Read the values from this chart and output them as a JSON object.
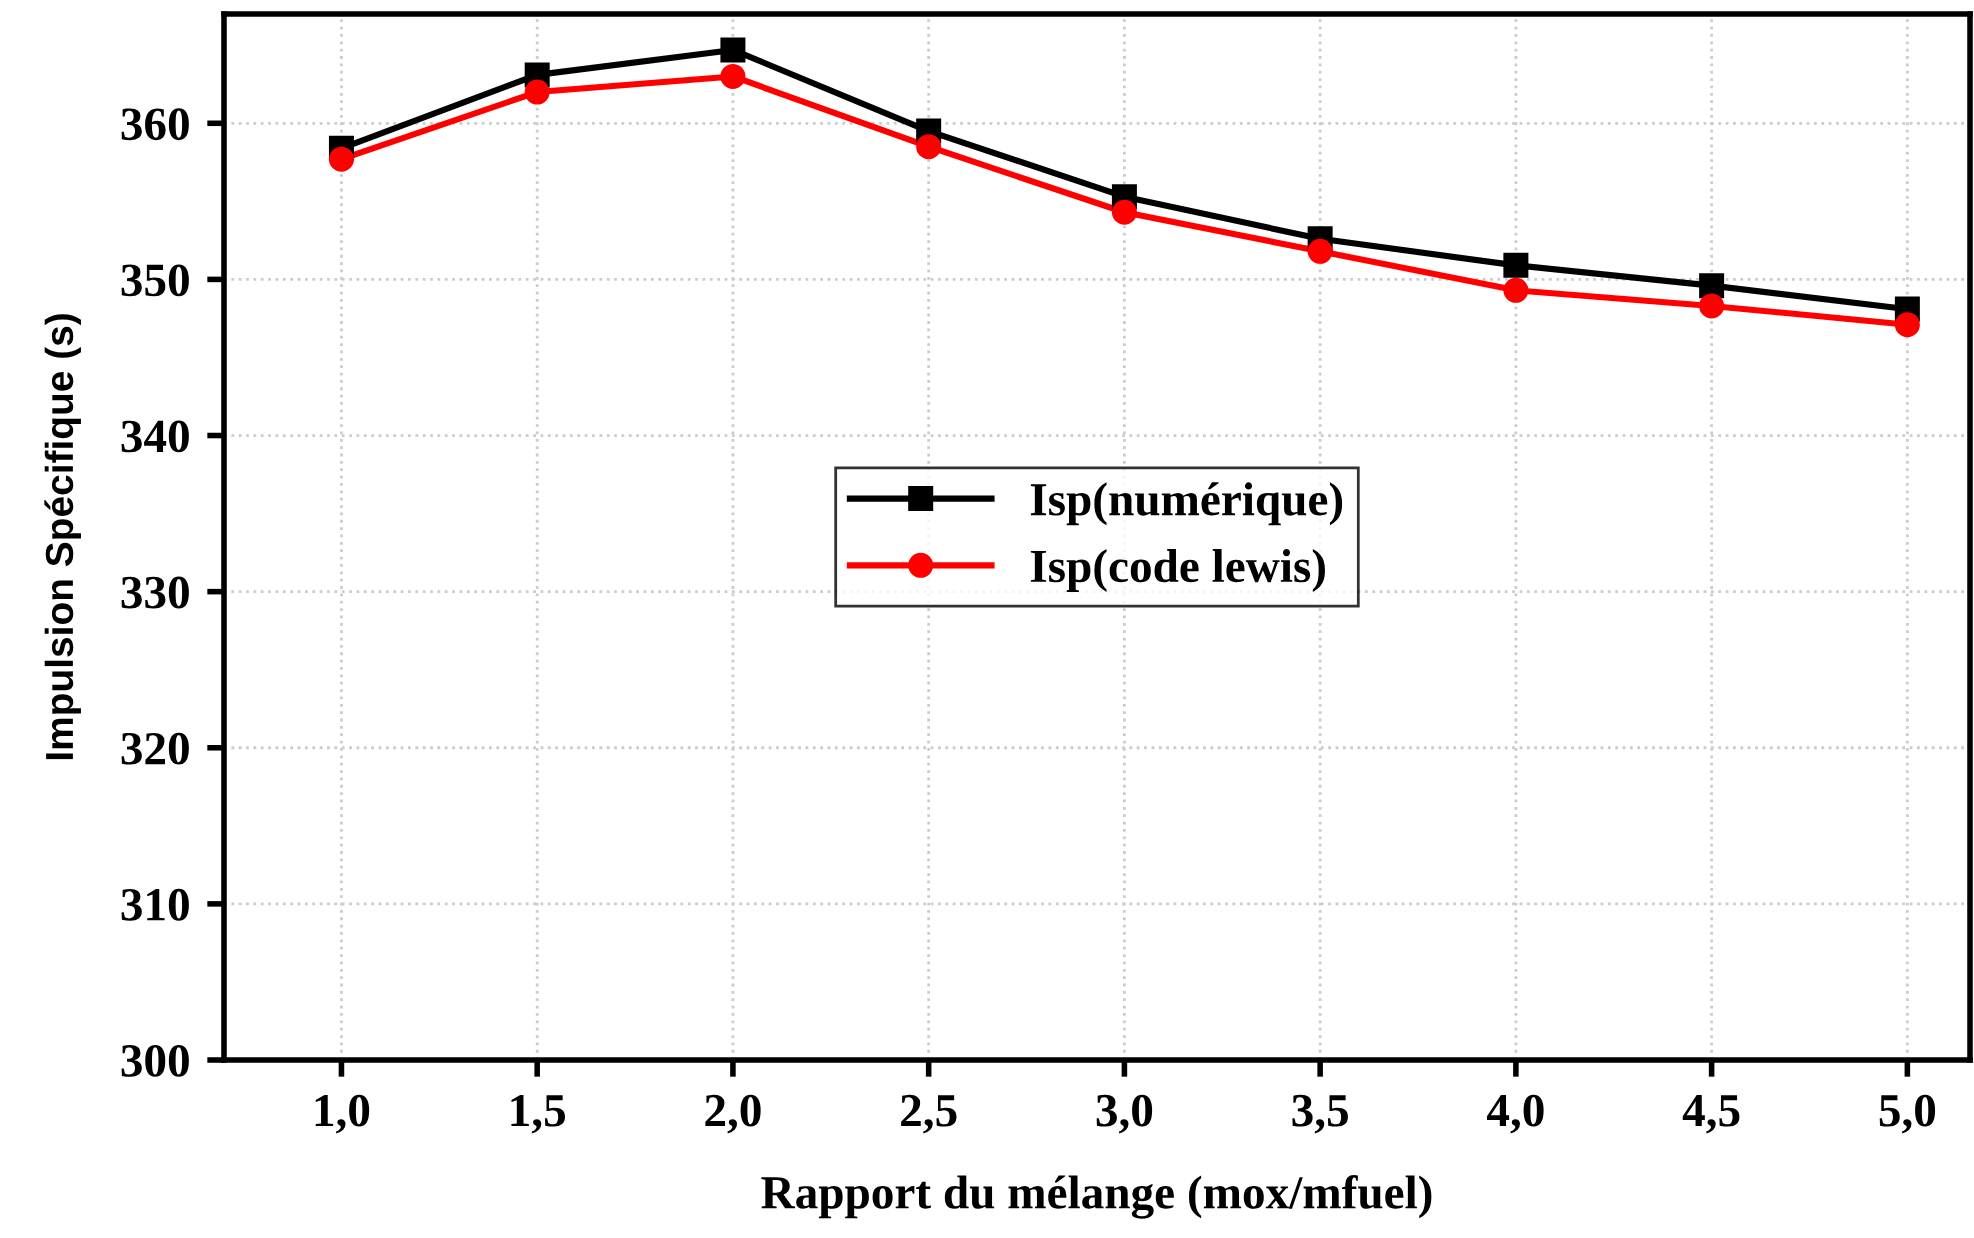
{
  "chart_data": {
    "type": "line",
    "xlabel": "Rapport du mélange (mox/mfuel)",
    "ylabel": "Impulsion Spécifique (s)",
    "x": [
      1.0,
      1.5,
      2.0,
      2.5,
      3.0,
      3.5,
      4.0,
      4.5,
      5.0
    ],
    "series": [
      {
        "name": "Isp(numérique)",
        "color": "#000000",
        "marker": "square",
        "values": [
          358.4,
          363.1,
          364.7,
          359.5,
          355.3,
          352.6,
          350.9,
          349.6,
          348.1
        ]
      },
      {
        "name": "Isp(code lewis)",
        "color": "#ff0000",
        "marker": "circle",
        "values": [
          357.7,
          362.0,
          363.0,
          358.5,
          354.3,
          351.8,
          349.3,
          348.3,
          347.1
        ]
      }
    ],
    "xlim": [
      0.7,
      5.16
    ],
    "ylim": [
      300,
      367
    ],
    "xticks": [
      {
        "value": 1.0,
        "label": "1,0"
      },
      {
        "value": 1.5,
        "label": "1,5"
      },
      {
        "value": 2.0,
        "label": "2,0"
      },
      {
        "value": 2.5,
        "label": "2,5"
      },
      {
        "value": 3.0,
        "label": "3,0"
      },
      {
        "value": 3.5,
        "label": "3,5"
      },
      {
        "value": 4.0,
        "label": "4,0"
      },
      {
        "value": 4.5,
        "label": "4,5"
      },
      {
        "value": 5.0,
        "label": "5,0"
      }
    ],
    "yticks": [
      300,
      310,
      320,
      330,
      340,
      350,
      360
    ],
    "grid": true,
    "legend": "center",
    "line_style": "solid"
  }
}
